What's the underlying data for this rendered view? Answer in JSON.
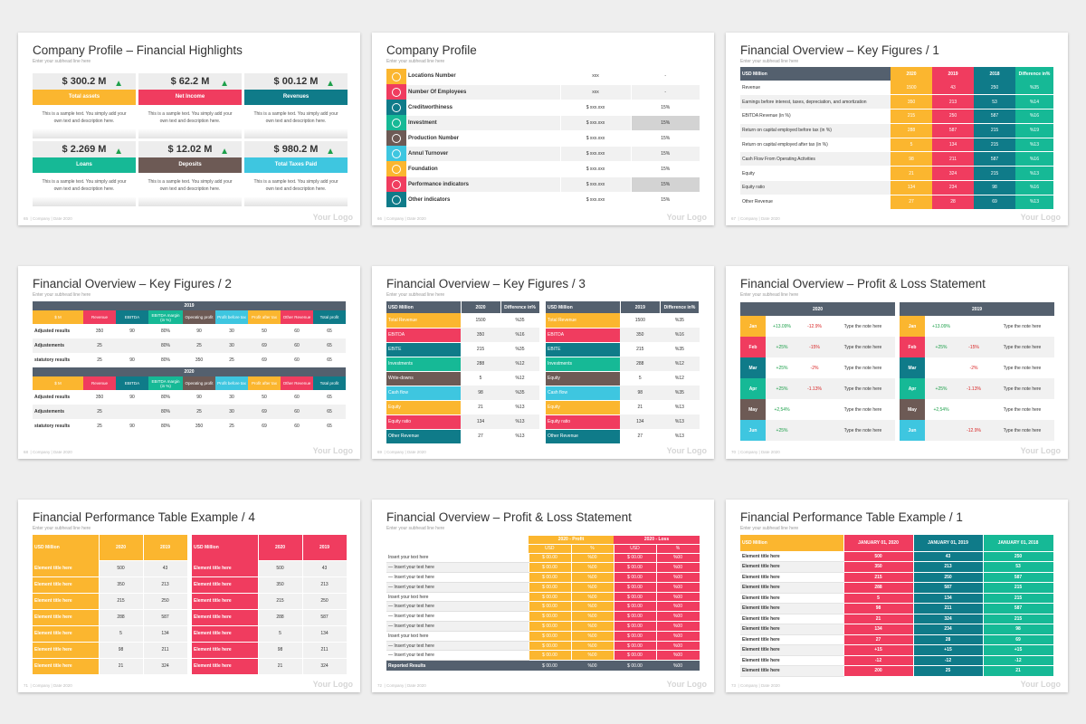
{
  "common": {
    "subhead": "Enter your subhead line here",
    "logo": "Your Logo",
    "company": "Company",
    "date": "Date 2020",
    "sep": "|"
  },
  "s1": {
    "title": "Company Profile – Financial Highlights",
    "num": "65",
    "desc": "This is a sample text. You simply add your own text and description here.",
    "tiles": [
      {
        "value": "$ 300.2 M",
        "label": "Total assets",
        "color": "#fbb62f"
      },
      {
        "value": "$ 62.2 M",
        "label": "Net Income",
        "color": "#f03c5f"
      },
      {
        "value": "$ 00.12 M",
        "label": "Revenues",
        "color": "#0f7b89"
      },
      {
        "value": "$ 2.269 M",
        "label": "Loans",
        "color": "#16b996"
      },
      {
        "value": "$ 12.02 M",
        "label": "Deposits",
        "color": "#6d5a55"
      },
      {
        "value": "$ 980.2 M",
        "label": "Total Taxes Paid",
        "color": "#3ec6e0"
      }
    ]
  },
  "s2": {
    "title": "Company Profile",
    "num": "66",
    "rows": [
      {
        "icon": "globe-icon",
        "label": "Locations Number",
        "a": "xxx",
        "b": "-",
        "color": "#fbb62f"
      },
      {
        "icon": "team-icon",
        "label": "Number Of Employees",
        "a": "xxx",
        "b": "-",
        "color": "#f03c5f"
      },
      {
        "icon": "credit-icon",
        "label": "Creditworthiness",
        "a": "$ xxx.xxx",
        "b": "15%",
        "color": "#0f7b89"
      },
      {
        "icon": "investment-icon",
        "label": "Investment",
        "a": "$ xxx.xxx",
        "b": "15%",
        "color": "#16b996"
      },
      {
        "icon": "box-icon",
        "label": "Production Number",
        "a": "$ xxx.xxx",
        "b": "15%",
        "color": "#6d5a55"
      },
      {
        "icon": "turnover-icon",
        "label": "Annul Turnover",
        "a": "$ xxx.xxx",
        "b": "15%",
        "color": "#3ec6e0"
      },
      {
        "icon": "foundation-icon",
        "label": "Foundation",
        "a": "$ xxx.xxx",
        "b": "15%",
        "color": "#fbb62f"
      },
      {
        "icon": "performance-icon",
        "label": "Performance indicators",
        "a": "$ xxx.xxx",
        "b": "15%",
        "color": "#f03c5f"
      },
      {
        "icon": "bulb-icon",
        "label": "Other indicators",
        "a": "$ xxx.xxx",
        "b": "15%",
        "color": "#0f7b89"
      }
    ]
  },
  "s3": {
    "title": "Financial Overview – Key Figures / 1",
    "num": "67",
    "headers": [
      "USD Million",
      "2020",
      "2019",
      "2018",
      "Difference in%"
    ],
    "rows": [
      [
        "Revenue",
        "1500",
        "43",
        "250",
        "%35"
      ],
      [
        "Earnings before interest, taxes, depreciation, and amortization",
        "350",
        "213",
        "53",
        "%14"
      ],
      [
        "EBITDA Revenue (in %)",
        "215",
        "250",
        "587",
        "%16"
      ],
      [
        "Return on capital employed before tax (in %)",
        "288",
        "587",
        "215",
        "%19"
      ],
      [
        "Return on capital employed after tax (in %)",
        "5",
        "134",
        "215",
        "%13"
      ],
      [
        "Cash Flow From Operating Activities",
        "98",
        "211",
        "587",
        "%16"
      ],
      [
        "Equity",
        "21",
        "324",
        "215",
        "%13"
      ],
      [
        "Equity ratio",
        "134",
        "234",
        "98",
        "%16"
      ],
      [
        "Other Revenue",
        "27",
        "28",
        "69",
        "%13"
      ]
    ]
  },
  "s4": {
    "title": "Financial Overview – Key Figures / 2",
    "num": "68",
    "headers": [
      "$ M",
      "Revenue",
      "EBITDA",
      "EBITDA margin (in %)",
      "Operating profit",
      "Profit before tax",
      "Profit after tax",
      "Other Revenue",
      "Total profit"
    ],
    "blocks": [
      {
        "year": "2019",
        "rows": [
          [
            "Adjusted results",
            "350",
            "90",
            "80%",
            "90",
            "30",
            "50",
            "60",
            "65"
          ],
          [
            "Adjustements",
            "25",
            "",
            "80%",
            "25",
            "30",
            "69",
            "60",
            "65"
          ],
          [
            "statutory results",
            "25",
            "90",
            "80%",
            "350",
            "25",
            "69",
            "60",
            "65"
          ]
        ]
      },
      {
        "year": "2020",
        "rows": [
          [
            "Adjusted results",
            "350",
            "90",
            "80%",
            "90",
            "30",
            "50",
            "60",
            "65"
          ],
          [
            "Adjustements",
            "25",
            "",
            "80%",
            "25",
            "30",
            "69",
            "60",
            "65"
          ],
          [
            "statutory results",
            "25",
            "90",
            "80%",
            "350",
            "25",
            "69",
            "60",
            "65"
          ]
        ]
      }
    ]
  },
  "s5": {
    "title": "Financial Overview – Key Figures / 3",
    "num": "69",
    "left": {
      "headers": [
        "USD Million",
        "2020",
        "Difference in%"
      ],
      "rows": [
        [
          "Total Revenue",
          "1500",
          "%35"
        ],
        [
          "EBITDA",
          "350",
          "%16"
        ],
        [
          "EBITE",
          "215",
          "%35"
        ],
        [
          "Investments",
          "288",
          "%12"
        ],
        [
          "Write-downs",
          "5",
          "%12"
        ],
        [
          "Cash flow",
          "98",
          "%35"
        ],
        [
          "Equity",
          "21",
          "%13"
        ],
        [
          "Equity ratio",
          "134",
          "%13"
        ],
        [
          "Other Revenue",
          "27",
          "%13"
        ]
      ]
    },
    "right": {
      "headers": [
        "USD Million",
        "2019",
        "Difference in%"
      ],
      "rows": [
        [
          "Total Revenue",
          "1500",
          "%35"
        ],
        [
          "EBITDA",
          "350",
          "%16"
        ],
        [
          "EBITE",
          "215",
          "%35"
        ],
        [
          "Investments",
          "288",
          "%12"
        ],
        [
          "Equity",
          "5",
          "%12"
        ],
        [
          "Cash flow",
          "98",
          "%35"
        ],
        [
          "Equity",
          "21",
          "%13"
        ],
        [
          "Equity ratio",
          "134",
          "%13"
        ],
        [
          "Other Revenue",
          "27",
          "%13"
        ]
      ]
    }
  },
  "s6": {
    "title": "Financial Overview – Profit & Loss Statement",
    "num": "70",
    "left": {
      "year": "2020",
      "rows": [
        [
          "Jan",
          "+13.09%",
          "-12.9%",
          "Type the note here"
        ],
        [
          "Feb",
          "+25%",
          "-15%",
          "Type the note here"
        ],
        [
          "Mar",
          "+25%",
          "-2%",
          "Type the note here"
        ],
        [
          "Apr",
          "+25%",
          "-1.13%",
          "Type the note here"
        ],
        [
          "May",
          "+2,54%",
          "",
          "Type the note here"
        ],
        [
          "Jun",
          "+25%",
          "",
          "Type the note here"
        ]
      ]
    },
    "right": {
      "year": "2019",
      "rows": [
        [
          "Jan",
          "+13.09%",
          "",
          "Type the note here"
        ],
        [
          "Feb",
          "+25%",
          "-15%",
          "Type the note here"
        ],
        [
          "Mar",
          "",
          "-2%",
          "Type the note here"
        ],
        [
          "Apr",
          "+25%",
          "-1.13%",
          "Type the note here"
        ],
        [
          "May",
          "+2,54%",
          "",
          "Type the note here"
        ],
        [
          "Jun",
          "",
          "-12.9%",
          "Type the note here"
        ]
      ]
    }
  },
  "s7": {
    "title": "Financial Performance Table Example / 4",
    "num": "71",
    "left": {
      "headers": [
        "USD Million",
        "2020",
        "2019"
      ],
      "rows": [
        [
          "Element title here",
          "500",
          "43"
        ],
        [
          "Element title here",
          "350",
          "213"
        ],
        [
          "Element title here",
          "215",
          "250"
        ],
        [
          "Element title here",
          "288",
          "587"
        ],
        [
          "Element title here",
          "5",
          "134"
        ],
        [
          "Element title here",
          "98",
          "211"
        ],
        [
          "Element title here",
          "21",
          "324"
        ]
      ]
    },
    "right": {
      "headers": [
        "USD Million",
        "2020",
        "2019"
      ],
      "rows": [
        [
          "Element title here",
          "500",
          "43"
        ],
        [
          "Element title here",
          "350",
          "213"
        ],
        [
          "Element title here",
          "215",
          "250"
        ],
        [
          "Element title here",
          "288",
          "587"
        ],
        [
          "Element title here",
          "5",
          "134"
        ],
        [
          "Element title here",
          "98",
          "211"
        ],
        [
          "Element title here",
          "21",
          "324"
        ]
      ]
    }
  },
  "s8": {
    "title": "Financial Overview – Profit & Loss Statement",
    "num": "72",
    "group_profit": "2020 - Profit",
    "group_loss": "2020 - Loss",
    "sub": [
      "USD",
      "%",
      "USD",
      "%"
    ],
    "rows": [
      "Insert your text here",
      "— Insert your text here",
      "— Insert your text here",
      "— Insert your text here",
      "Insert your text here",
      "— Insert your text here",
      "— Insert your text here",
      "— Insert your text here",
      "Insert your text here",
      "— Insert your text here",
      "— Insert your text here"
    ],
    "usd": "$ 00.00",
    "pct": "%00",
    "footer": "Reported Results"
  },
  "s9": {
    "title": "Financial Performance Table Example / 1",
    "num": "73",
    "headers": [
      "USD Million",
      "JANUARY 01, 2020",
      "JANUARY 01, 2019",
      "JANUARY 01, 2018"
    ],
    "rows": [
      [
        "Element title here",
        "500",
        "43",
        "250"
      ],
      [
        "Element title here",
        "350",
        "213",
        "53"
      ],
      [
        "Element title here",
        "215",
        "250",
        "587"
      ],
      [
        "Element title here",
        "288",
        "587",
        "215"
      ],
      [
        "Element title here",
        "5",
        "134",
        "215"
      ],
      [
        "Element title here",
        "98",
        "211",
        "587"
      ],
      [
        "Element title here",
        "21",
        "324",
        "215"
      ],
      [
        "Element title here",
        "134",
        "234",
        "98"
      ],
      [
        "Element title here",
        "27",
        "28",
        "69"
      ],
      [
        "Element title here",
        "+15",
        "+15",
        "+15"
      ],
      [
        "Element title here",
        "-12",
        "-12",
        "-12"
      ],
      [
        "Element title here",
        "200",
        "25",
        "21"
      ]
    ]
  }
}
